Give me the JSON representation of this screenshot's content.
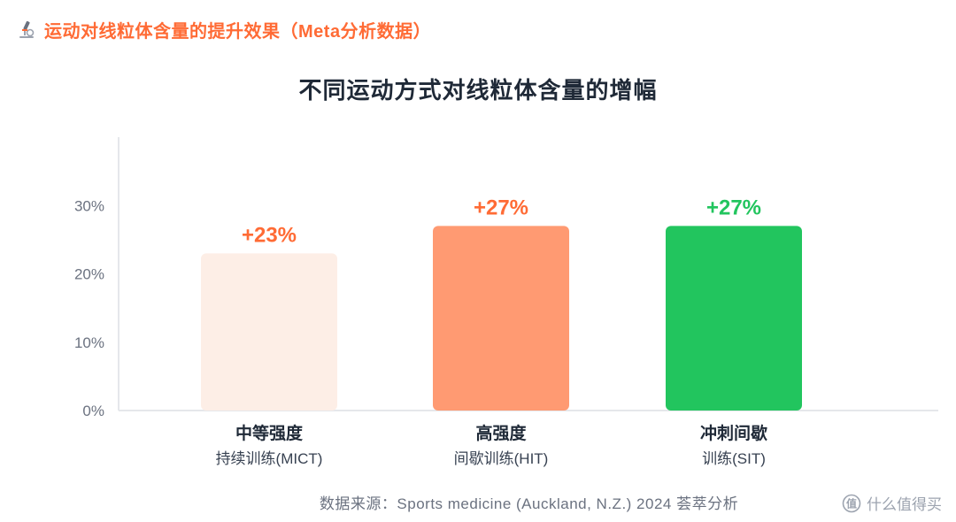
{
  "header": {
    "title": "运动对线粒体含量的提升效果（Meta分析数据）",
    "icon": "microscope-icon",
    "color": "#ff6b35"
  },
  "chart_data": {
    "type": "bar",
    "title": "不同运动方式对线粒体含量的增幅",
    "categories": [
      "中等强度",
      "高强度",
      "冲刺间歇"
    ],
    "subcategories": [
      "持续训练(MICT)",
      "间歇训练(HIT)",
      "训练(SIT)"
    ],
    "values": [
      23,
      27,
      27
    ],
    "value_labels": [
      "+23%",
      "+27%",
      "+27%"
    ],
    "bar_colors": [
      "#fdeee6",
      "#ff9a72",
      "#22c55e"
    ],
    "label_colors": [
      "#ff6b35",
      "#ff6b35",
      "#22c55e"
    ],
    "yticks": [
      0,
      10,
      20,
      30
    ],
    "ytick_labels": [
      "0%",
      "10%",
      "20%",
      "30%"
    ],
    "ylim": [
      0,
      40
    ],
    "xlabel": "",
    "ylabel": "",
    "grid": false,
    "legend": "none"
  },
  "source": "数据来源：Sports medicine (Auckland, N.Z.) 2024 荟萃分析",
  "watermark": {
    "text": "什么值得买",
    "icon": "smzdm-logo-icon"
  }
}
